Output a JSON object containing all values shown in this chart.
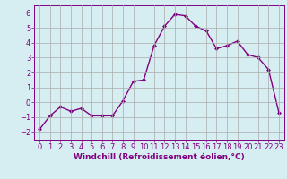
{
  "x": [
    0,
    1,
    2,
    3,
    4,
    5,
    6,
    7,
    8,
    9,
    10,
    11,
    12,
    13,
    14,
    15,
    16,
    17,
    18,
    19,
    20,
    21,
    22,
    23
  ],
  "y": [
    -1.8,
    -0.9,
    -0.3,
    -0.6,
    -0.4,
    -0.9,
    -0.9,
    -0.9,
    0.1,
    1.4,
    1.5,
    3.8,
    5.1,
    5.9,
    5.8,
    5.1,
    4.8,
    3.6,
    3.8,
    4.1,
    3.2,
    3.0,
    2.2,
    -0.7
  ],
  "line_color": "#800080",
  "marker": "D",
  "marker_size": 2,
  "bg_color": "#d6eef2",
  "grid_color": "#aaaaaa",
  "xlabel": "Windchill (Refroidissement éolien,°C)",
  "ylabel": "",
  "xlim": [
    -0.5,
    23.5
  ],
  "ylim": [
    -2.5,
    6.5
  ],
  "yticks": [
    -2,
    -1,
    0,
    1,
    2,
    3,
    4,
    5,
    6
  ],
  "xticks": [
    0,
    1,
    2,
    3,
    4,
    5,
    6,
    7,
    8,
    9,
    10,
    11,
    12,
    13,
    14,
    15,
    16,
    17,
    18,
    19,
    20,
    21,
    22,
    23
  ],
  "label_color": "#800080",
  "tick_color": "#800080",
  "xlabel_fontsize": 6.5,
  "tick_fontsize": 6,
  "linewidth": 1.0
}
